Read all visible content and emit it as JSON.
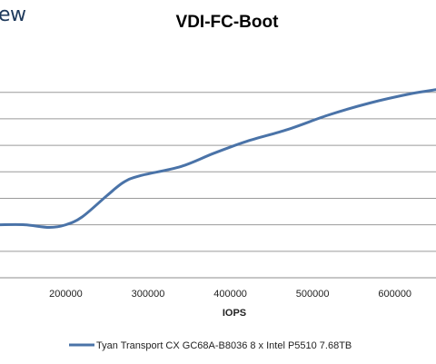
{
  "header": {
    "logo_text": "ew"
  },
  "chart_data": {
    "type": "line",
    "title": "VDI-FC-Boot",
    "xlabel": "IOPS",
    "ylabel": "",
    "x_ticks": [
      200000,
      300000,
      400000,
      500000,
      600000
    ],
    "xlim": [
      120000,
      650000
    ],
    "ylim": [
      0,
      8.6
    ],
    "grid": true,
    "legend_position": "bottom",
    "series": [
      {
        "name": "Tyan Transport CX GC68A-B8036 8 x Intel P5510 7.68TB",
        "color": "#4a73a8",
        "x": [
          120000,
          150000,
          180000,
          200000,
          220000,
          250000,
          270000,
          290000,
          340000,
          380000,
          420000,
          470000,
          520000,
          570000,
          620000,
          650000
        ],
        "y": [
          2.0,
          2.0,
          1.9,
          2.0,
          2.3,
          3.1,
          3.6,
          3.85,
          4.2,
          4.7,
          5.15,
          5.6,
          6.15,
          6.6,
          6.95,
          7.1
        ]
      }
    ]
  }
}
